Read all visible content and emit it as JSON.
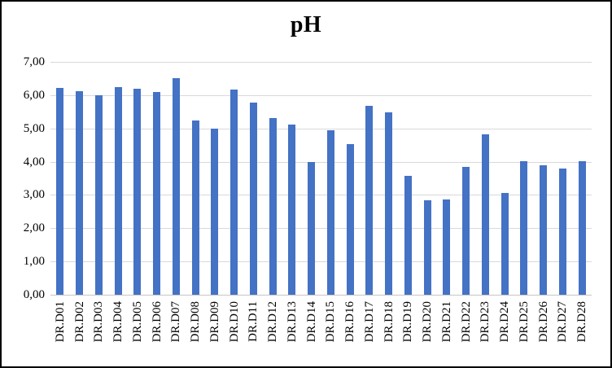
{
  "window": {
    "background_color": "#ffffff",
    "border_color": "#000000"
  },
  "chart_data": {
    "type": "bar",
    "title": "pH",
    "xlabel": "",
    "ylabel": "",
    "categories": [
      "DR.D01",
      "DR.D02",
      "DR.D03",
      "DR.D04",
      "DR.D05",
      "DR.D06",
      "DR.D07",
      "DR.D08",
      "DR.D09",
      "DR.D10",
      "DR.D11",
      "DR.D12",
      "DR.D13",
      "DR.D14",
      "DR.D15",
      "DR.D16",
      "DR.D17",
      "DR.D18",
      "DR.D19",
      "DR.D20",
      "DR.D21",
      "DR.D22",
      "DR.D23",
      "DR.D24",
      "DR.D25",
      "DR.D26",
      "DR.D27",
      "DR.D28"
    ],
    "values": [
      6.22,
      6.13,
      6.0,
      6.25,
      6.2,
      6.1,
      6.5,
      5.25,
      5.0,
      6.17,
      5.78,
      5.3,
      5.12,
      3.98,
      4.95,
      4.54,
      5.69,
      5.49,
      3.57,
      2.84,
      2.86,
      3.84,
      4.81,
      3.06,
      4.02,
      3.9,
      3.8,
      4.02
    ],
    "ylim": [
      0,
      7
    ],
    "ytick_step": 1,
    "ytick_labels": [
      "0,00",
      "1,00",
      "2,00",
      "3,00",
      "4,00",
      "5,00",
      "6,00",
      "7,00"
    ],
    "decimal_separator": ",",
    "grid": true,
    "legend": false,
    "bar_color": "#4472c4",
    "gridline_color": "#d9d9d9",
    "text_color": "#000000"
  }
}
